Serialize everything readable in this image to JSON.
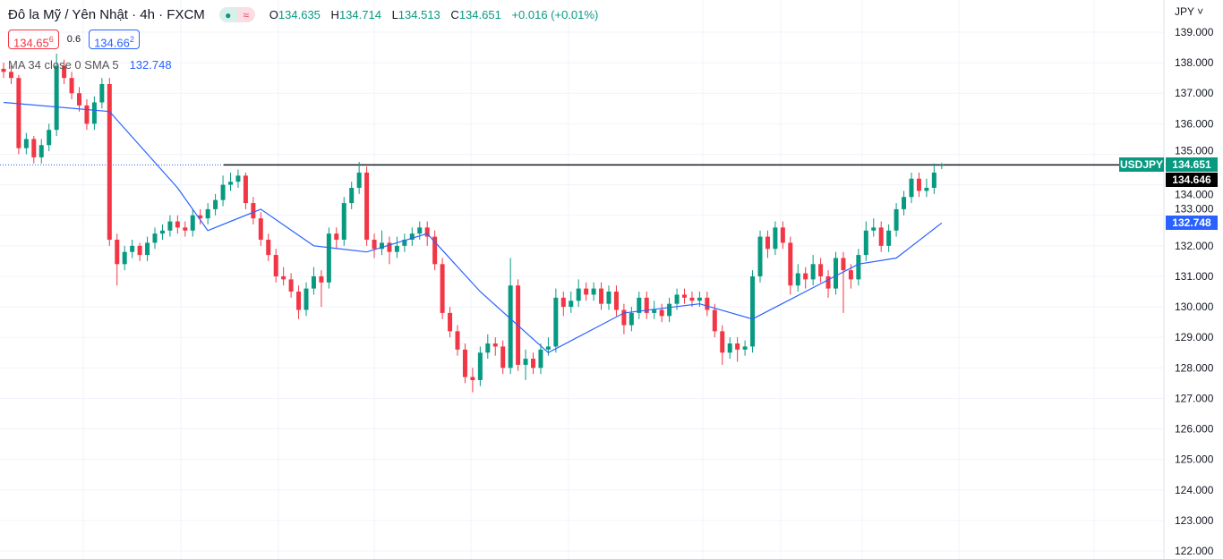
{
  "header": {
    "title": "Đô la Mỹ / Yên Nhật · 4h · FXCM",
    "status_open_icon": "market-open-dot-icon",
    "status_symbol": "≈",
    "ohlc": {
      "o_label": "O",
      "o": "134.635",
      "h_label": "H",
      "h": "134.714",
      "l_label": "L",
      "l": "134.513",
      "c_label": "C",
      "c": "134.651",
      "change": "+0.016 (+0.01%)"
    },
    "sell_price": "134.65",
    "sell_price_sup": "6",
    "spread": "0.6",
    "buy_price": "134.66",
    "buy_price_sup": "2",
    "indicator": "MA 34 close 0 SMA 5",
    "indicator_value": "132.748"
  },
  "axis": {
    "currency": "JPY ˅"
  },
  "labels": {
    "symbol": "USDJPY",
    "last_price": "134.651",
    "countdown_price": "134.646",
    "ma_price": "132.748"
  },
  "colors": {
    "up": "#089981",
    "down": "#f23645",
    "ma": "#2962ff",
    "grid": "#f0f3fa"
  },
  "chart_data": {
    "type": "candlestick",
    "ylim": [
      121.9,
      139.6
    ],
    "yticks": [
      "139.000",
      "138.000",
      "137.000",
      "136.000",
      "135.000",
      "134.000",
      "133.000",
      "132.000",
      "131.000",
      "130.000",
      "129.000",
      "128.000",
      "127.000",
      "126.000",
      "125.000",
      "124.000",
      "123.000",
      "122.000"
    ],
    "grid": true,
    "candles": [
      [
        137.8,
        138.0,
        137.5,
        137.7
      ],
      [
        137.7,
        137.9,
        137.3,
        137.5
      ],
      [
        137.5,
        137.6,
        135.0,
        135.2
      ],
      [
        135.2,
        135.7,
        135.0,
        135.5
      ],
      [
        135.5,
        135.6,
        134.7,
        134.9
      ],
      [
        134.9,
        135.5,
        134.7,
        135.3
      ],
      [
        135.3,
        136.0,
        135.1,
        135.8
      ],
      [
        135.8,
        138.3,
        135.6,
        137.9
      ],
      [
        137.9,
        138.1,
        137.3,
        137.5
      ],
      [
        137.5,
        137.7,
        136.8,
        137.0
      ],
      [
        137.0,
        137.2,
        136.4,
        136.6
      ],
      [
        136.6,
        136.8,
        135.8,
        136.0
      ],
      [
        136.0,
        136.9,
        135.8,
        136.7
      ],
      [
        136.7,
        137.5,
        136.5,
        137.3
      ],
      [
        137.3,
        137.5,
        132.0,
        132.2
      ],
      [
        132.2,
        132.4,
        130.7,
        131.4
      ],
      [
        131.4,
        132.0,
        131.2,
        131.8
      ],
      [
        131.8,
        132.2,
        131.6,
        132.0
      ],
      [
        132.0,
        132.1,
        131.5,
        131.7
      ],
      [
        131.7,
        132.3,
        131.5,
        132.1
      ],
      [
        132.1,
        132.6,
        131.9,
        132.4
      ],
      [
        132.4,
        132.7,
        132.2,
        132.5
      ],
      [
        132.5,
        133.0,
        132.3,
        132.8
      ],
      [
        132.8,
        133.0,
        132.4,
        132.6
      ],
      [
        132.6,
        132.8,
        132.3,
        132.5
      ],
      [
        132.5,
        133.2,
        132.3,
        133.0
      ],
      [
        133.0,
        133.2,
        132.7,
        132.9
      ],
      [
        132.9,
        133.4,
        132.7,
        133.2
      ],
      [
        133.2,
        133.7,
        133.0,
        133.5
      ],
      [
        133.5,
        134.3,
        133.3,
        134.0
      ],
      [
        134.0,
        134.4,
        133.8,
        134.1
      ],
      [
        134.1,
        134.5,
        133.9,
        134.3
      ],
      [
        134.3,
        134.4,
        133.2,
        133.4
      ],
      [
        133.4,
        133.6,
        132.7,
        132.9
      ],
      [
        132.9,
        133.1,
        132.0,
        132.2
      ],
      [
        132.2,
        132.4,
        131.5,
        131.7
      ],
      [
        131.7,
        131.9,
        130.8,
        131.0
      ],
      [
        131.0,
        131.3,
        130.7,
        130.9
      ],
      [
        130.9,
        131.1,
        130.3,
        130.5
      ],
      [
        130.5,
        130.7,
        129.6,
        129.9
      ],
      [
        129.9,
        130.8,
        129.7,
        130.6
      ],
      [
        130.6,
        131.3,
        130.4,
        131.0
      ],
      [
        131.0,
        131.2,
        130.0,
        130.8
      ],
      [
        130.8,
        132.6,
        130.6,
        132.4
      ],
      [
        132.4,
        132.6,
        131.9,
        132.2
      ],
      [
        132.2,
        133.6,
        132.0,
        133.4
      ],
      [
        133.4,
        134.1,
        133.2,
        133.9
      ],
      [
        133.9,
        134.75,
        133.7,
        134.4
      ],
      [
        134.4,
        134.6,
        132.0,
        132.2
      ],
      [
        132.2,
        132.4,
        131.6,
        131.9
      ],
      [
        131.9,
        132.5,
        131.7,
        132.1
      ],
      [
        132.1,
        132.3,
        131.4,
        131.8
      ],
      [
        131.8,
        132.3,
        131.6,
        132.0
      ],
      [
        132.0,
        132.4,
        131.8,
        132.2
      ],
      [
        132.2,
        132.6,
        132.0,
        132.4
      ],
      [
        132.4,
        132.8,
        132.2,
        132.6
      ],
      [
        132.6,
        132.8,
        132.0,
        132.3
      ],
      [
        132.3,
        132.5,
        131.2,
        131.4
      ],
      [
        131.4,
        131.6,
        129.6,
        129.8
      ],
      [
        129.8,
        130.0,
        129.0,
        129.2
      ],
      [
        129.2,
        129.4,
        128.4,
        128.6
      ],
      [
        128.6,
        128.8,
        127.5,
        127.7
      ],
      [
        127.7,
        128.0,
        127.2,
        127.6
      ],
      [
        127.6,
        128.7,
        127.4,
        128.5
      ],
      [
        128.5,
        129.1,
        128.3,
        128.8
      ],
      [
        128.8,
        129.0,
        128.4,
        128.7
      ],
      [
        128.7,
        128.9,
        127.8,
        128.0
      ],
      [
        128.0,
        131.6,
        127.8,
        130.7
      ],
      [
        130.7,
        130.9,
        127.9,
        128.1
      ],
      [
        128.1,
        128.6,
        127.6,
        128.3
      ],
      [
        128.3,
        128.5,
        127.8,
        128.0
      ],
      [
        128.0,
        128.8,
        127.8,
        128.6
      ],
      [
        128.6,
        129.0,
        128.4,
        128.7
      ],
      [
        128.7,
        130.6,
        128.5,
        130.3
      ],
      [
        130.3,
        130.5,
        129.7,
        130.0
      ],
      [
        130.0,
        130.5,
        129.8,
        130.2
      ],
      [
        130.2,
        130.9,
        130.0,
        130.6
      ],
      [
        130.6,
        130.8,
        130.2,
        130.4
      ],
      [
        130.4,
        130.8,
        130.2,
        130.6
      ],
      [
        130.6,
        130.8,
        129.9,
        130.1
      ],
      [
        130.1,
        130.7,
        129.9,
        130.5
      ],
      [
        130.5,
        130.7,
        129.7,
        129.9
      ],
      [
        129.9,
        130.1,
        129.1,
        129.4
      ],
      [
        129.4,
        130.0,
        129.2,
        129.8
      ],
      [
        129.8,
        130.5,
        129.6,
        130.3
      ],
      [
        130.3,
        130.5,
        129.6,
        129.8
      ],
      [
        129.8,
        130.2,
        129.6,
        129.9
      ],
      [
        129.9,
        130.1,
        129.5,
        129.7
      ],
      [
        129.7,
        130.3,
        129.5,
        130.1
      ],
      [
        130.1,
        130.6,
        129.9,
        130.4
      ],
      [
        130.4,
        130.6,
        130.1,
        130.3
      ],
      [
        130.3,
        130.5,
        130.0,
        130.2
      ],
      [
        130.2,
        130.5,
        130.0,
        130.3
      ],
      [
        130.3,
        130.5,
        129.7,
        129.9
      ],
      [
        129.9,
        130.1,
        129.0,
        129.2
      ],
      [
        129.2,
        129.4,
        128.1,
        128.5
      ],
      [
        128.5,
        129.0,
        128.3,
        128.8
      ],
      [
        128.8,
        129.0,
        128.2,
        128.6
      ],
      [
        128.6,
        128.9,
        128.4,
        128.7
      ],
      [
        128.7,
        131.2,
        128.5,
        131.0
      ],
      [
        131.0,
        132.5,
        130.8,
        132.3
      ],
      [
        132.3,
        132.5,
        131.6,
        131.9
      ],
      [
        131.9,
        132.8,
        131.7,
        132.6
      ],
      [
        132.6,
        132.8,
        131.9,
        132.1
      ],
      [
        132.1,
        132.3,
        130.4,
        130.7
      ],
      [
        130.7,
        131.4,
        130.5,
        131.1
      ],
      [
        131.1,
        131.3,
        130.6,
        130.9
      ],
      [
        130.9,
        131.7,
        130.7,
        131.4
      ],
      [
        131.4,
        131.6,
        130.8,
        131.0
      ],
      [
        131.0,
        131.2,
        130.3,
        130.6
      ],
      [
        130.6,
        131.8,
        130.4,
        131.6
      ],
      [
        131.6,
        131.8,
        129.8,
        131.2
      ],
      [
        131.2,
        131.4,
        130.6,
        130.9
      ],
      [
        130.9,
        131.9,
        130.7,
        131.7
      ],
      [
        131.7,
        132.8,
        131.5,
        132.5
      ],
      [
        132.5,
        132.9,
        132.3,
        132.6
      ],
      [
        132.6,
        132.8,
        131.8,
        132.0
      ],
      [
        132.0,
        132.7,
        131.8,
        132.5
      ],
      [
        132.5,
        133.4,
        132.3,
        133.2
      ],
      [
        133.2,
        133.8,
        133.0,
        133.6
      ],
      [
        133.6,
        134.4,
        133.4,
        134.2
      ],
      [
        134.2,
        134.4,
        133.6,
        133.8
      ],
      [
        133.8,
        134.2,
        133.6,
        133.9
      ],
      [
        133.9,
        134.7,
        133.7,
        134.4
      ],
      [
        134.635,
        134.714,
        134.513,
        134.651
      ]
    ],
    "ma_series": {
      "name": "MA 34 close 0 SMA 5",
      "points": [
        [
          0,
          136.7
        ],
        [
          14,
          136.4
        ],
        [
          23,
          133.9
        ],
        [
          27,
          132.5
        ],
        [
          34,
          133.2
        ],
        [
          41,
          132.0
        ],
        [
          48,
          131.8
        ],
        [
          56,
          132.4
        ],
        [
          63,
          130.5
        ],
        [
          72,
          128.5
        ],
        [
          82,
          129.8
        ],
        [
          92,
          130.1
        ],
        [
          99,
          129.6
        ],
        [
          106,
          130.5
        ],
        [
          113,
          131.4
        ],
        [
          118,
          131.6
        ],
        [
          124,
          132.748
        ]
      ]
    },
    "last_price": 134.651,
    "horizontal_line": 134.651
  }
}
